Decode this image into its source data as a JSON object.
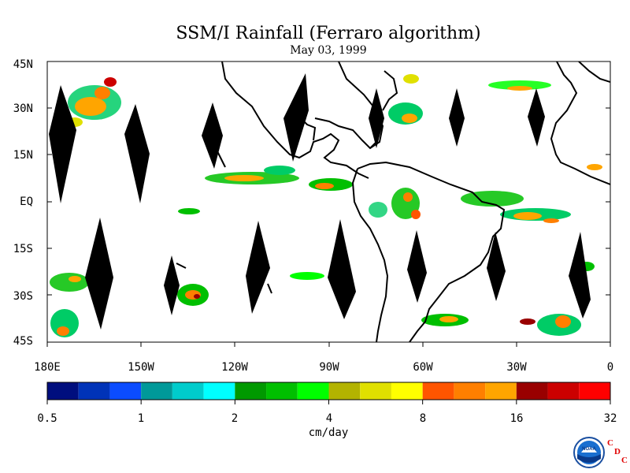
{
  "title": "SSM/I Rainfall (Ferraro algorithm)",
  "date": "May 03, 1999",
  "lat_labels": [
    "45N",
    "30N",
    "15N",
    "EQ",
    "15S",
    "30S",
    "45S"
  ],
  "lon_labels": [
    "180E",
    "150W",
    "120W",
    "90W",
    "60W",
    "30W",
    "0"
  ],
  "colorbar": {
    "labels": [
      "0.5",
      "1",
      "2",
      "4",
      "8",
      "16",
      "32"
    ],
    "unit": "cm/day",
    "colors": [
      "#000e7e",
      "#0033b8",
      "#0b4cff",
      "#009999",
      "#00cccc",
      "#00ffff",
      "#009900",
      "#00bf00",
      "#00ff00",
      "#b3b300",
      "#e0e000",
      "#ffff00",
      "#ff5500",
      "#ff7f00",
      "#ffa500",
      "#990000",
      "#cc0000",
      "#ff0000"
    ]
  },
  "logo": {
    "text": "NOAA",
    "letters": [
      "C",
      "D",
      "C"
    ]
  }
}
